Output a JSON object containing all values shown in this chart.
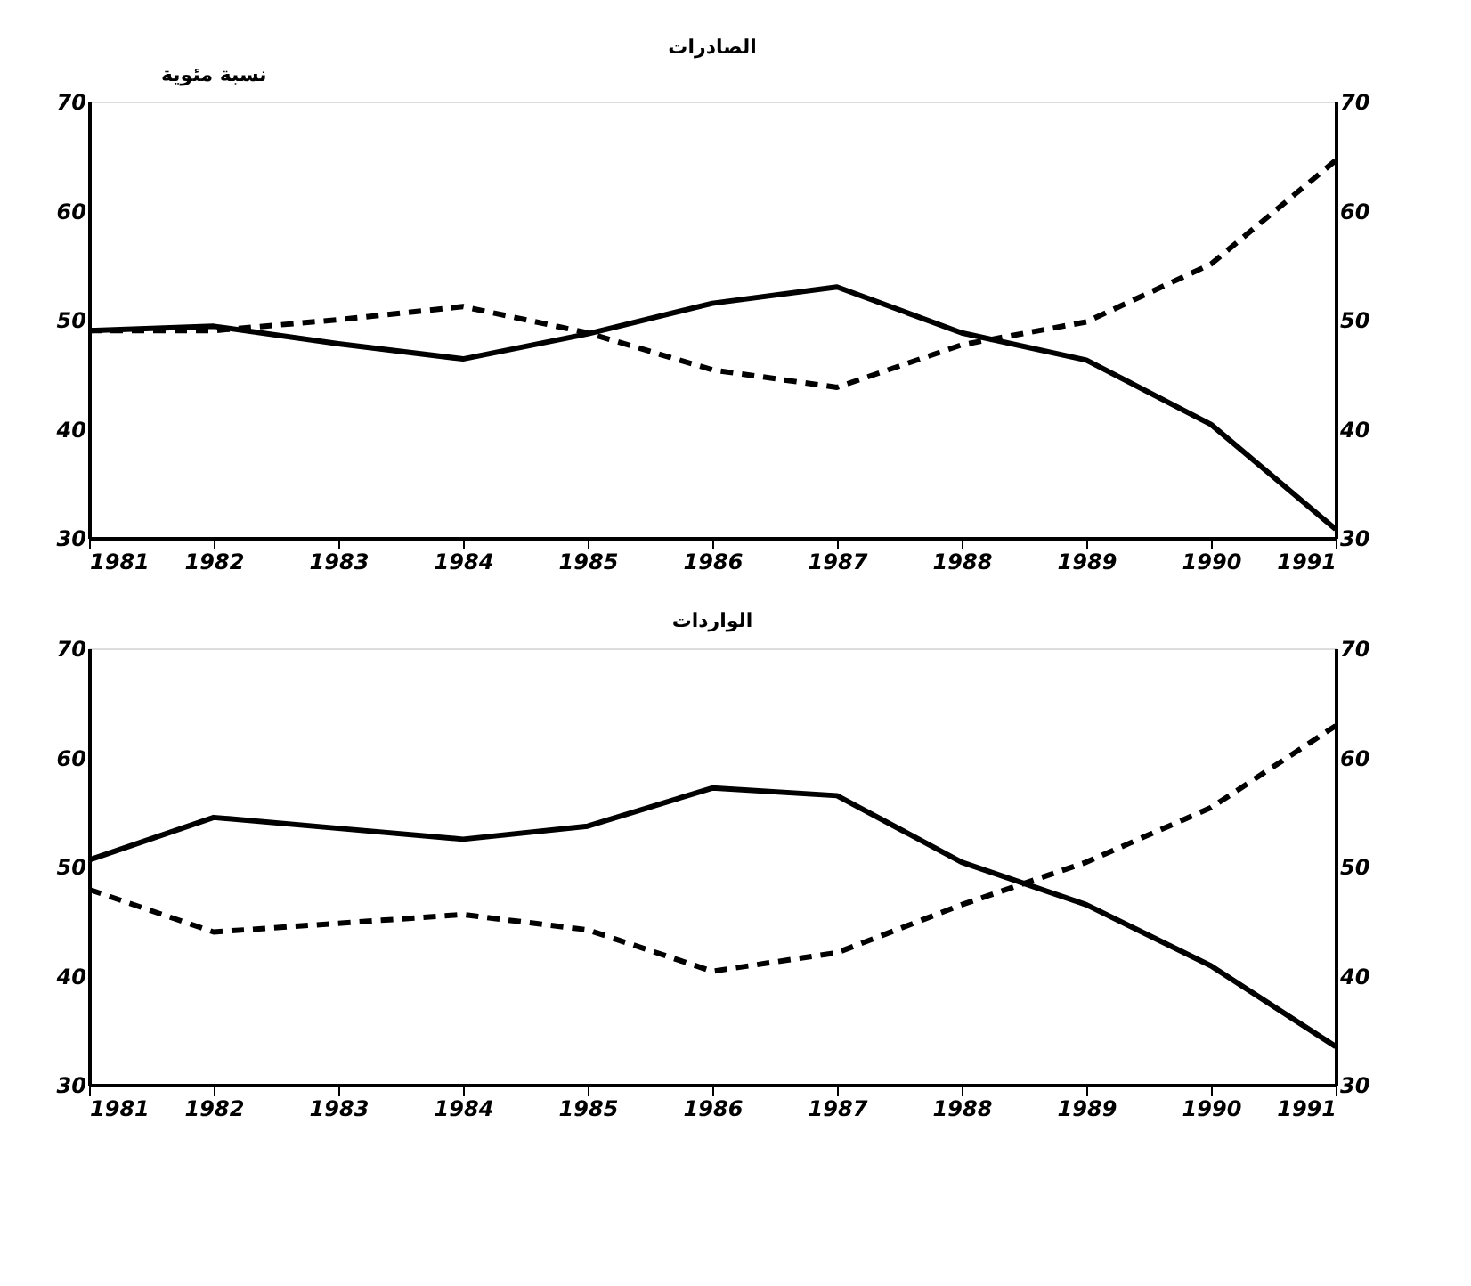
{
  "chart_data": [
    {
      "type": "line",
      "title": "الصادرات",
      "ylabel": "نسبة مئوية",
      "x": [
        1981,
        1982,
        1983,
        1984,
        1985,
        1986,
        1987,
        1988,
        1989,
        1990,
        1991
      ],
      "xlim": [
        1981,
        1991
      ],
      "xticks": [
        1981,
        1982,
        1983,
        1984,
        1985,
        1986,
        1987,
        1988,
        1989,
        1990,
        1991
      ],
      "ylim": [
        30,
        70
      ],
      "yticks": [
        30,
        40,
        50,
        60,
        70
      ],
      "y2lim": [
        30,
        70
      ],
      "y2ticks": [
        30,
        40,
        50,
        60,
        70
      ],
      "series": [
        {
          "color": "#000000",
          "line_style": "solid",
          "values": [
            49.0,
            49.4,
            47.8,
            46.4,
            48.7,
            51.5,
            53.0,
            48.8,
            46.3,
            40.4,
            30.8
          ]
        },
        {
          "color": "#000000",
          "line_style": "dashed",
          "values": [
            49.0,
            49.0,
            50.0,
            51.2,
            48.8,
            45.4,
            43.8,
            47.7,
            49.8,
            55.1,
            64.6
          ]
        }
      ]
    },
    {
      "type": "line",
      "title": "الواردات",
      "x": [
        1981,
        1982,
        1983,
        1984,
        1985,
        1986,
        1987,
        1988,
        1989,
        1990,
        1991
      ],
      "xlim": [
        1981,
        1991
      ],
      "xticks": [
        1981,
        1982,
        1983,
        1984,
        1985,
        1986,
        1987,
        1988,
        1989,
        1990,
        1991
      ],
      "ylim": [
        30,
        70
      ],
      "yticks": [
        30,
        40,
        50,
        60,
        70
      ],
      "y2lim": [
        30,
        70
      ],
      "y2ticks": [
        30,
        40,
        50,
        60,
        70
      ],
      "series": [
        {
          "color": "#000000",
          "line_style": "solid",
          "values": [
            50.6,
            54.5,
            53.5,
            52.5,
            53.7,
            57.2,
            56.5,
            50.4,
            46.5,
            40.9,
            33.5
          ]
        },
        {
          "color": "#000000",
          "line_style": "dashed",
          "values": [
            47.9,
            44.0,
            44.8,
            45.6,
            44.2,
            40.4,
            42.1,
            46.5,
            50.4,
            55.4,
            62.9
          ]
        }
      ]
    }
  ]
}
